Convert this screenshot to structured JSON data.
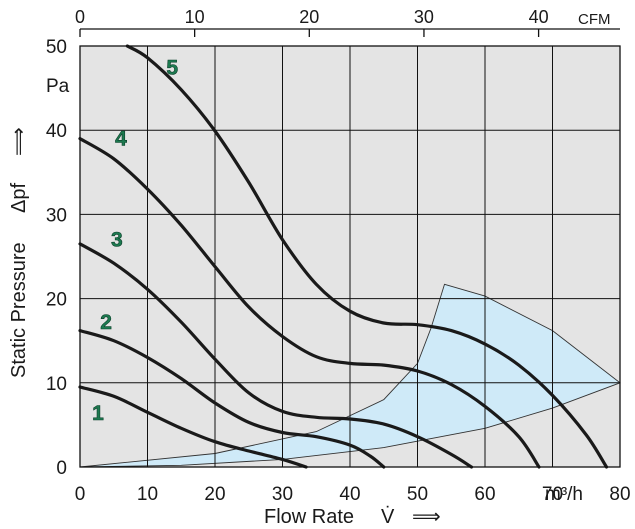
{
  "chart_data": {
    "type": "line",
    "plot_background": "#e4e4e4",
    "region_fill": "#cfeaf8",
    "curve_label_color": "#1d7a50",
    "x_axis": {
      "title": "Flow Rate",
      "symbol": "V̇",
      "arrow": "⟹",
      "unit": "m³/h",
      "range": [
        0,
        80
      ],
      "ticks": [
        "0",
        "10",
        "20",
        "30",
        "40",
        "50",
        "60",
        "70",
        "80"
      ]
    },
    "x2_axis": {
      "unit": "CFM",
      "range": [
        0,
        47.1
      ],
      "ticks": [
        "0",
        "10",
        "20",
        "30",
        "40"
      ]
    },
    "y_axis": {
      "title": "Static Pressure",
      "symbol": "Δpf",
      "arrow": "⟹",
      "unit": "Pa",
      "range": [
        0,
        50
      ],
      "ticks": [
        "0",
        "10",
        "20",
        "30",
        "40",
        "50"
      ]
    },
    "grid": true,
    "series": [
      {
        "name": "1",
        "points": [
          [
            0,
            9.5
          ],
          [
            5,
            8.4
          ],
          [
            10,
            6.5
          ],
          [
            15,
            4.6
          ],
          [
            20,
            3.0
          ],
          [
            25,
            1.9
          ],
          [
            30,
            0.9
          ],
          [
            33.5,
            0
          ]
        ]
      },
      {
        "name": "2",
        "points": [
          [
            0,
            16.2
          ],
          [
            5,
            15.0
          ],
          [
            10,
            13.0
          ],
          [
            15,
            10.5
          ],
          [
            20,
            7.6
          ],
          [
            25,
            5.3
          ],
          [
            30,
            4.1
          ],
          [
            35,
            3.6
          ],
          [
            40,
            2.6
          ],
          [
            43,
            1.3
          ],
          [
            45,
            0
          ]
        ]
      },
      {
        "name": "3",
        "points": [
          [
            0,
            26.5
          ],
          [
            5,
            24.2
          ],
          [
            10,
            21.1
          ],
          [
            15,
            17.2
          ],
          [
            20,
            12.8
          ],
          [
            25,
            8.8
          ],
          [
            30,
            6.6
          ],
          [
            35,
            5.9
          ],
          [
            40,
            5.7
          ],
          [
            45,
            5.1
          ],
          [
            50,
            3.6
          ],
          [
            55,
            1.5
          ],
          [
            58,
            0
          ]
        ]
      },
      {
        "name": "4",
        "points": [
          [
            0,
            39.0
          ],
          [
            5,
            36.6
          ],
          [
            10,
            33.0
          ],
          [
            15,
            28.7
          ],
          [
            20,
            23.8
          ],
          [
            25,
            19.0
          ],
          [
            30,
            15.5
          ],
          [
            35,
            13.1
          ],
          [
            40,
            12.3
          ],
          [
            45,
            12.1
          ],
          [
            50,
            11.4
          ],
          [
            55,
            9.8
          ],
          [
            60,
            7.2
          ],
          [
            65,
            3.6
          ],
          [
            68,
            0
          ]
        ]
      },
      {
        "name": "5",
        "points": [
          [
            7,
            50.0
          ],
          [
            10,
            48.6
          ],
          [
            15,
            44.8
          ],
          [
            20,
            39.9
          ],
          [
            25,
            33.8
          ],
          [
            30,
            27.0
          ],
          [
            35,
            21.7
          ],
          [
            40,
            18.5
          ],
          [
            45,
            17.1
          ],
          [
            50,
            16.9
          ],
          [
            55,
            16.2
          ],
          [
            60,
            14.6
          ],
          [
            65,
            12.1
          ],
          [
            70,
            8.5
          ],
          [
            75,
            3.8
          ],
          [
            78,
            0
          ]
        ]
      }
    ],
    "region": [
      [
        0,
        0
      ],
      [
        20,
        1.6
      ],
      [
        35,
        4.2
      ],
      [
        45,
        8.0
      ],
      [
        50,
        12.3
      ],
      [
        52,
        16.5
      ],
      [
        54,
        21.7
      ],
      [
        60,
        20.3
      ],
      [
        70,
        16.2
      ],
      [
        80,
        10.0
      ],
      [
        70,
        7.0
      ],
      [
        60,
        4.6
      ],
      [
        45,
        2.3
      ],
      [
        30,
        0.9
      ],
      [
        15,
        0.2
      ],
      [
        0,
        0
      ]
    ]
  }
}
